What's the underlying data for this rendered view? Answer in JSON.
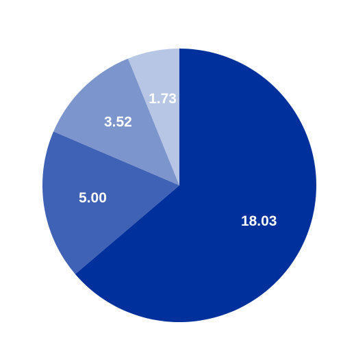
{
  "chart_data": {
    "type": "pie",
    "title": "",
    "slices": [
      {
        "value": 18.03,
        "label": "18.03",
        "color": "#00309b"
      },
      {
        "value": 5.0,
        "label": "5.00",
        "color": "#3f62b7"
      },
      {
        "value": 3.52,
        "label": "3.52",
        "color": "#7c95cc"
      },
      {
        "value": 1.73,
        "label": "1.73",
        "color": "#b8c6e6"
      }
    ],
    "start_angle_deg": 0,
    "direction": "clockwise",
    "legend": "none"
  }
}
